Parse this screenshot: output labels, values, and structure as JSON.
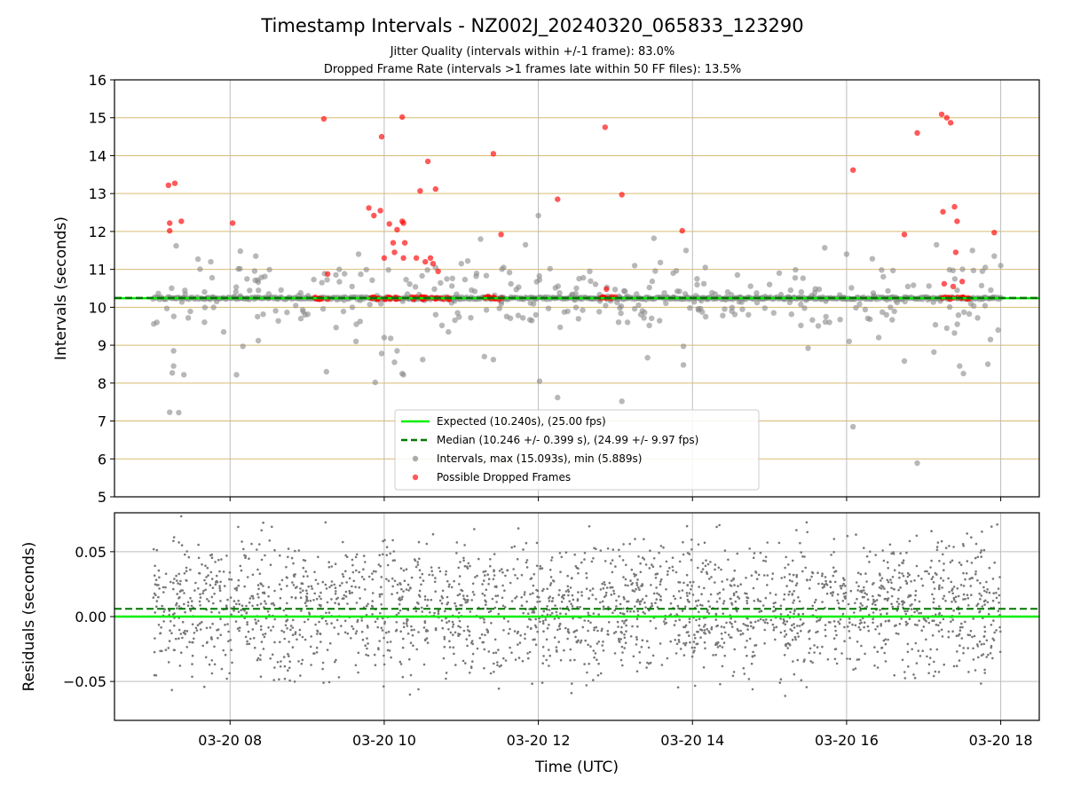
{
  "figure": {
    "title": "Timestamp Intervals - NZ002J_20240320_065833_123290",
    "subtitle_1": "Jitter Quality (intervals within +/-1 frame): 83.0%",
    "subtitle_2": "Dropped Frame Rate (intervals >1 frames late within 50 FF files): 13.5%"
  },
  "colors": {
    "expected": "#00ee00",
    "median": "#007700",
    "intervals": "#888888",
    "dropped": "#ff0000",
    "hgrid": "#d8bb70",
    "vgrid": "#bdbdbd",
    "residual_points": "#777777"
  },
  "chart_data": [
    {
      "type": "scatter",
      "panel": "top",
      "ylabel": "Intervals (seconds)",
      "ylim": [
        5,
        16
      ],
      "yticks": [
        5,
        6,
        7,
        8,
        9,
        10,
        11,
        12,
        13,
        14,
        15,
        16
      ],
      "xlim": [
        "03-20 06:30",
        "03-20 18:30"
      ],
      "xticks": [
        "03-20 08",
        "03-20 10",
        "03-20 12",
        "03-20 14",
        "03-20 16",
        "03-20 18"
      ],
      "grid": "on",
      "legend_position": "lower center",
      "legend": [
        "Expected (10.240s), (25.00 fps)",
        "Median (10.246 +/- 0.399 s), (24.99 +/- 9.97 fps)",
        "Intervals, max (15.093s), min (5.889s)",
        "Possible Dropped Frames"
      ],
      "expected_value": 10.24,
      "median_value": 10.246,
      "time_range": [
        "03-20 07:00",
        "03-20 18:00"
      ],
      "series": [
        {
          "name": "Intervals, max (15.093s), min (5.889s)",
          "baseline": 10.24,
          "points": [
            [
              "07:13",
              7.23
            ],
            [
              "07:20",
              7.22
            ],
            [
              "07:15",
              8.27
            ],
            [
              "07:16",
              8.45
            ],
            [
              "07:24",
              8.22
            ],
            [
              "07:16",
              8.85
            ],
            [
              "07:18",
              11.62
            ],
            [
              "07:35",
              11.27
            ],
            [
              "07:45",
              11.2
            ],
            [
              "07:55",
              9.35
            ],
            [
              "08:05",
              8.22
            ],
            [
              "08:10",
              8.97
            ],
            [
              "08:08",
              11.48
            ],
            [
              "08:20",
              11.35
            ],
            [
              "08:22",
              9.12
            ],
            [
              "09:15",
              8.3
            ],
            [
              "09:25",
              11.0
            ],
            [
              "09:35",
              10.55
            ],
            [
              "09:38",
              9.1
            ],
            [
              "09:40",
              11.4
            ],
            [
              "09:53",
              8.02
            ],
            [
              "09:58",
              8.78
            ],
            [
              "10:00",
              9.2
            ],
            [
              "10:05",
              9.18
            ],
            [
              "10:10",
              8.85
            ],
            [
              "10:15",
              8.22
            ],
            [
              "10:14",
              8.25
            ],
            [
              "10:08",
              8.55
            ],
            [
              "10:30",
              8.62
            ],
            [
              "10:40",
              11.05
            ],
            [
              "10:50",
              9.35
            ],
            [
              "11:00",
              11.15
            ],
            [
              "11:05",
              11.22
            ],
            [
              "11:15",
              11.8
            ],
            [
              "11:18",
              8.7
            ],
            [
              "11:25",
              8.62
            ],
            [
              "11:33",
              11.05
            ],
            [
              "11:50",
              11.65
            ],
            [
              "11:55",
              9.65
            ],
            [
              "12:00",
              12.42
            ],
            [
              "12:01",
              8.05
            ],
            [
              "12:15",
              7.62
            ],
            [
              "12:40",
              10.95
            ],
            [
              "13:05",
              7.52
            ],
            [
              "13:15",
              11.1
            ],
            [
              "13:25",
              8.67
            ],
            [
              "13:30",
              11.82
            ],
            [
              "13:35",
              11.18
            ],
            [
              "13:45",
              10.9
            ],
            [
              "13:53",
              8.97
            ],
            [
              "13:53",
              8.48
            ],
            [
              "13:55",
              11.5
            ],
            [
              "14:10",
              11.05
            ],
            [
              "14:35",
              10.85
            ],
            [
              "15:00",
              10.6
            ],
            [
              "15:30",
              8.92
            ],
            [
              "15:43",
              11.57
            ],
            [
              "16:00",
              11.4
            ],
            [
              "16:02",
              9.1
            ],
            [
              "16:05",
              6.85
            ],
            [
              "16:20",
              11.28
            ],
            [
              "16:25",
              9.2
            ],
            [
              "16:45",
              8.58
            ],
            [
              "16:55",
              5.89
            ],
            [
              "17:08",
              8.82
            ],
            [
              "17:10",
              11.65
            ],
            [
              "17:18",
              9.45
            ],
            [
              "17:24",
              9.32
            ],
            [
              "17:28",
              8.45
            ],
            [
              "17:31",
              8.25
            ],
            [
              "17:38",
              11.5
            ],
            [
              "17:42",
              9.72
            ],
            [
              "17:48",
              11.05
            ],
            [
              "17:50",
              8.5
            ],
            [
              "17:52",
              9.15
            ],
            [
              "17:55",
              11.35
            ],
            [
              "18:00",
              11.1
            ],
            [
              "17:58",
              9.4
            ]
          ]
        },
        {
          "name": "Possible Dropped Frames",
          "baseline": 10.24,
          "points": [
            [
              "07:12",
              13.22
            ],
            [
              "07:17",
              13.27
            ],
            [
              "07:13",
              12.22
            ],
            [
              "07:13",
              12.02
            ],
            [
              "07:22",
              12.27
            ],
            [
              "08:02",
              12.22
            ],
            [
              "09:13",
              14.97
            ],
            [
              "09:16",
              10.88
            ],
            [
              "09:48",
              12.62
            ],
            [
              "09:52",
              12.42
            ],
            [
              "09:57",
              12.55
            ],
            [
              "09:58",
              14.5
            ],
            [
              "10:00",
              11.3
            ],
            [
              "10:04",
              12.2
            ],
            [
              "10:07",
              11.7
            ],
            [
              "10:08",
              11.45
            ],
            [
              "10:10",
              12.05
            ],
            [
              "10:14",
              12.27
            ],
            [
              "10:15",
              12.22
            ],
            [
              "10:14",
              15.02
            ],
            [
              "10:15",
              11.3
            ],
            [
              "10:16",
              11.7
            ],
            [
              "10:25",
              11.3
            ],
            [
              "10:28",
              13.07
            ],
            [
              "10:32",
              11.2
            ],
            [
              "10:34",
              13.85
            ],
            [
              "10:36",
              11.3
            ],
            [
              "10:40",
              13.12
            ],
            [
              "10:38",
              11.15
            ],
            [
              "10:42",
              10.95
            ],
            [
              "11:25",
              14.05
            ],
            [
              "11:31",
              11.92
            ],
            [
              "12:15",
              12.85
            ],
            [
              "12:52",
              14.75
            ],
            [
              "12:53",
              10.48
            ],
            [
              "13:05",
              12.97
            ],
            [
              "13:52",
              12.02
            ],
            [
              "16:05",
              13.62
            ],
            [
              "16:45",
              11.92
            ],
            [
              "16:55",
              14.6
            ],
            [
              "17:14",
              15.09
            ],
            [
              "17:18",
              15.0
            ],
            [
              "17:21",
              14.87
            ],
            [
              "17:15",
              12.52
            ],
            [
              "17:24",
              12.65
            ],
            [
              "17:26",
              12.27
            ],
            [
              "17:25",
              11.45
            ],
            [
              "17:16",
              10.62
            ],
            [
              "17:23",
              10.55
            ],
            [
              "17:30",
              10.68
            ],
            [
              "17:55",
              11.97
            ]
          ]
        }
      ]
    },
    {
      "type": "scatter",
      "panel": "bottom",
      "xlabel": "Time (UTC)",
      "ylabel": "Residuals (seconds)",
      "ylim": [
        -0.08,
        0.08
      ],
      "yticks": [
        0.05,
        0.0,
        -0.05
      ],
      "ytick_labels": [
        "0.05",
        "0.00",
        "−0.05"
      ],
      "xlim": [
        "03-20 06:30",
        "03-20 18:30"
      ],
      "xticks": [
        "03-20 08",
        "03-20 10",
        "03-20 12",
        "03-20 14",
        "03-20 16",
        "03-20 18"
      ],
      "grid": "on",
      "zero_line": 0.0,
      "median_residual": 0.006,
      "time_range": [
        "03-20 07:00",
        "03-20 18:00"
      ],
      "series": [
        {
          "name": "",
          "center": 0.006,
          "spread": 0.025,
          "min": -0.08,
          "max": 0.08
        }
      ]
    }
  ]
}
